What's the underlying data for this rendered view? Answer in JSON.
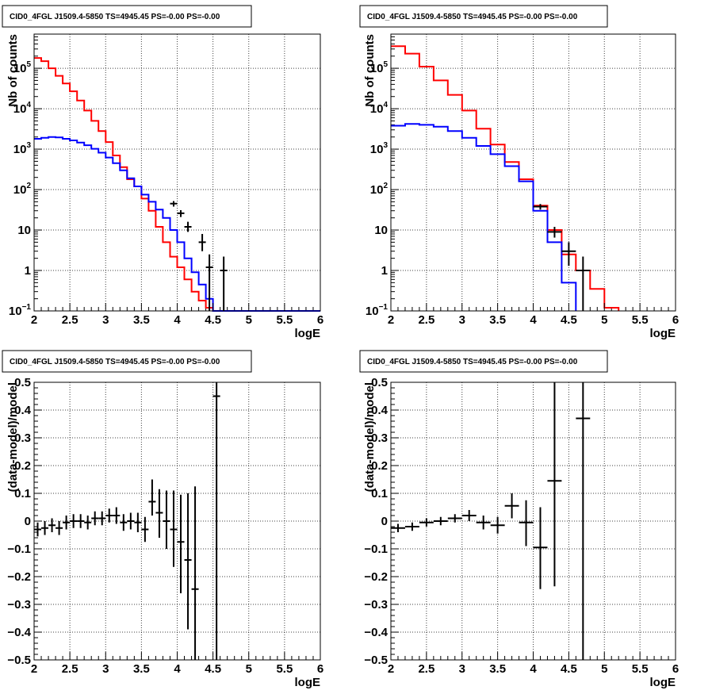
{
  "chart_data": [
    {
      "type": "line",
      "scale": "log",
      "title": "CID0_4FGL J1509.4-5850 TS=4945.45 PS=-0.00 PS=-0.00",
      "xlabel": "logE",
      "ylabel": "Nb of counts",
      "xlim": [
        2,
        6
      ],
      "ylim": [
        0.1,
        700000
      ],
      "x_ticks": [
        "2",
        "2.5",
        "3",
        "3.5",
        "4",
        "4.5",
        "5",
        "5.5",
        "6"
      ],
      "y_ticks": [
        {
          "value": 0.1,
          "label": "10",
          "sup": "−1"
        },
        {
          "value": 1,
          "label": "1",
          "sup": ""
        },
        {
          "value": 10,
          "label": "10",
          "sup": ""
        },
        {
          "value": 100,
          "label": "10",
          "sup": "2"
        },
        {
          "value": 1000,
          "label": "10",
          "sup": "3"
        },
        {
          "value": 10000,
          "label": "10",
          "sup": "4"
        },
        {
          "value": 100000,
          "label": "10",
          "sup": "5"
        }
      ],
      "grid": true,
      "series": [
        {
          "kind": "step",
          "color": "#ff0000",
          "edges": [
            2.0,
            2.1,
            2.2,
            2.3,
            2.4,
            2.5,
            2.6,
            2.7,
            2.8,
            2.9,
            3.0,
            3.1,
            3.2,
            3.3,
            3.4,
            3.5,
            3.6,
            3.7,
            3.8,
            3.9,
            4.0,
            4.1,
            4.2,
            4.3,
            4.4,
            4.5,
            4.6,
            4.7,
            4.8,
            4.9,
            5.0
          ],
          "values": [
            180000,
            150000,
            100000,
            65000,
            42000,
            27000,
            16000,
            9000,
            5000,
            2800,
            1500,
            700,
            360,
            180,
            120,
            60,
            30,
            12,
            5,
            2.2,
            1.2,
            0.6,
            0.3,
            0.18,
            0.12,
            0.1,
            0.1,
            0.1,
            0.1,
            0.1
          ]
        },
        {
          "kind": "step",
          "color": "#0000ff",
          "edges": [
            2.0,
            2.1,
            2.2,
            2.3,
            2.4,
            2.5,
            2.6,
            2.7,
            2.8,
            2.9,
            3.0,
            3.1,
            3.2,
            3.3,
            3.4,
            3.5,
            3.6,
            3.7,
            3.8,
            3.9,
            4.0,
            4.1,
            4.2,
            4.3,
            4.4,
            4.5,
            4.6
          ],
          "values": [
            1800,
            1900,
            2000,
            1950,
            1800,
            1650,
            1450,
            1250,
            1020,
            820,
            620,
            450,
            300,
            190,
            120,
            75,
            50,
            32,
            20,
            10,
            5,
            2,
            0.9,
            0.45,
            0.2,
            0.1
          ]
        },
        {
          "kind": "points",
          "color": "#000000",
          "points": [
            {
              "x": 3.95,
              "y": 45,
              "xerr": 0.05,
              "ylo": 38,
              "yhi": 52
            },
            {
              "x": 4.05,
              "y": 26,
              "xerr": 0.05,
              "ylo": 21,
              "yhi": 31
            },
            {
              "x": 4.15,
              "y": 12,
              "xerr": 0.05,
              "ylo": 9,
              "yhi": 16
            },
            {
              "x": 4.35,
              "y": 5,
              "xerr": 0.05,
              "ylo": 3,
              "yhi": 8
            },
            {
              "x": 4.45,
              "y": 1.2,
              "xerr": 0.05,
              "ylo": 0.1,
              "yhi": 2.5
            },
            {
              "x": 4.65,
              "y": 1.0,
              "xerr": 0.05,
              "ylo": 0.1,
              "yhi": 2.2
            }
          ]
        }
      ]
    },
    {
      "type": "line",
      "scale": "log",
      "title": "CID0_4FGL J1509.4-5850 TS=4945.45 PS=-0.00 PS=-0.00",
      "xlabel": "logE",
      "ylabel": "Nb of counts",
      "xlim": [
        2,
        6
      ],
      "ylim": [
        0.1,
        700000
      ],
      "x_ticks": [
        "2",
        "2.5",
        "3",
        "3.5",
        "4",
        "4.5",
        "5",
        "5.5",
        "6"
      ],
      "y_ticks": [
        {
          "value": 0.1,
          "label": "10",
          "sup": "−1"
        },
        {
          "value": 1,
          "label": "1",
          "sup": ""
        },
        {
          "value": 10,
          "label": "10",
          "sup": ""
        },
        {
          "value": 100,
          "label": "10",
          "sup": "2"
        },
        {
          "value": 1000,
          "label": "10",
          "sup": "3"
        },
        {
          "value": 10000,
          "label": "10",
          "sup": "4"
        },
        {
          "value": 100000,
          "label": "10",
          "sup": "5"
        }
      ],
      "grid": true,
      "series": [
        {
          "kind": "step",
          "color": "#ff0000",
          "edges": [
            2.0,
            2.2,
            2.4,
            2.6,
            2.8,
            3.0,
            3.2,
            3.4,
            3.6,
            3.8,
            4.0,
            4.2,
            4.4,
            4.6,
            4.8,
            5.0,
            5.2
          ],
          "values": [
            350000,
            230000,
            110000,
            50000,
            22000,
            9000,
            3200,
            1300,
            480,
            180,
            40,
            10,
            2.5,
            1.0,
            0.35,
            0.12
          ]
        },
        {
          "kind": "step",
          "color": "#0000ff",
          "edges": [
            2.0,
            2.2,
            2.4,
            2.6,
            2.8,
            3.0,
            3.2,
            3.4,
            3.6,
            3.8,
            4.0,
            4.2,
            4.4,
            4.6
          ],
          "values": [
            3800,
            4200,
            4000,
            3600,
            2800,
            1900,
            1200,
            750,
            380,
            160,
            30,
            5,
            0.5
          ]
        },
        {
          "kind": "points",
          "color": "#000000",
          "points": [
            {
              "x": 4.1,
              "y": 38,
              "xerr": 0.1,
              "ylo": 32,
              "yhi": 44
            },
            {
              "x": 4.3,
              "y": 9,
              "xerr": 0.1,
              "ylo": 6.5,
              "yhi": 12
            },
            {
              "x": 4.5,
              "y": 3,
              "xerr": 0.1,
              "ylo": 1.3,
              "yhi": 5
            },
            {
              "x": 4.7,
              "y": 1.0,
              "xerr": 0.1,
              "ylo": 0.1,
              "yhi": 2.2
            }
          ]
        }
      ]
    },
    {
      "type": "scatter",
      "scale": "linear",
      "title": "CID0_4FGL J1509.4-5850 TS=4945.45 PS=-0.00 PS=-0.00",
      "xlabel": "logE",
      "ylabel": "(data-model)/model",
      "xlim": [
        2,
        6
      ],
      "ylim": [
        -0.5,
        0.5
      ],
      "x_ticks": [
        "2",
        "2.5",
        "3",
        "3.5",
        "4",
        "4.5",
        "5",
        "5.5",
        "6"
      ],
      "y_ticks": [
        {
          "value": -0.5,
          "label": "−0.5"
        },
        {
          "value": -0.4,
          "label": "−0.4"
        },
        {
          "value": -0.3,
          "label": "−0.3"
        },
        {
          "value": -0.2,
          "label": "−0.2"
        },
        {
          "value": -0.1,
          "label": "−0.1"
        },
        {
          "value": 0,
          "label": "0"
        },
        {
          "value": 0.1,
          "label": "0.1"
        },
        {
          "value": 0.2,
          "label": "0.2"
        },
        {
          "value": 0.3,
          "label": "0.3"
        },
        {
          "value": 0.4,
          "label": "0.4"
        },
        {
          "value": 0.5,
          "label": "0.5"
        }
      ],
      "grid": true,
      "series": [
        {
          "kind": "points",
          "color": "#000000",
          "points": [
            {
              "x": 2.05,
              "y": -0.03,
              "xerr": 0.05,
              "ylo": -0.055,
              "yhi": -0.005
            },
            {
              "x": 2.15,
              "y": -0.025,
              "xerr": 0.05,
              "ylo": -0.05,
              "yhi": 0.0
            },
            {
              "x": 2.25,
              "y": -0.015,
              "xerr": 0.05,
              "ylo": -0.04,
              "yhi": 0.01
            },
            {
              "x": 2.35,
              "y": -0.025,
              "xerr": 0.05,
              "ylo": -0.05,
              "yhi": 0.0
            },
            {
              "x": 2.45,
              "y": -0.005,
              "xerr": 0.05,
              "ylo": -0.03,
              "yhi": 0.02
            },
            {
              "x": 2.55,
              "y": 0.0,
              "xerr": 0.05,
              "ylo": -0.025,
              "yhi": 0.025
            },
            {
              "x": 2.65,
              "y": 0.0,
              "xerr": 0.05,
              "ylo": -0.025,
              "yhi": 0.025
            },
            {
              "x": 2.75,
              "y": -0.005,
              "xerr": 0.05,
              "ylo": -0.03,
              "yhi": 0.02
            },
            {
              "x": 2.85,
              "y": 0.01,
              "xerr": 0.05,
              "ylo": -0.015,
              "yhi": 0.035
            },
            {
              "x": 2.95,
              "y": 0.01,
              "xerr": 0.05,
              "ylo": -0.015,
              "yhi": 0.035
            },
            {
              "x": 3.05,
              "y": 0.02,
              "xerr": 0.05,
              "ylo": -0.005,
              "yhi": 0.045
            },
            {
              "x": 3.15,
              "y": 0.02,
              "xerr": 0.05,
              "ylo": -0.01,
              "yhi": 0.05
            },
            {
              "x": 3.25,
              "y": -0.005,
              "xerr": 0.05,
              "ylo": -0.035,
              "yhi": 0.025
            },
            {
              "x": 3.35,
              "y": 0.0,
              "xerr": 0.05,
              "ylo": -0.03,
              "yhi": 0.03
            },
            {
              "x": 3.45,
              "y": -0.005,
              "xerr": 0.05,
              "ylo": -0.04,
              "yhi": 0.03
            },
            {
              "x": 3.55,
              "y": -0.03,
              "xerr": 0.05,
              "ylo": -0.075,
              "yhi": 0.015
            },
            {
              "x": 3.65,
              "y": 0.07,
              "xerr": 0.05,
              "ylo": 0.02,
              "yhi": 0.15
            },
            {
              "x": 3.75,
              "y": 0.03,
              "xerr": 0.05,
              "ylo": -0.06,
              "yhi": 0.115
            },
            {
              "x": 3.85,
              "y": 0.0,
              "xerr": 0.05,
              "ylo": -0.1,
              "yhi": 0.11
            },
            {
              "x": 3.95,
              "y": -0.03,
              "xerr": 0.05,
              "ylo": -0.165,
              "yhi": 0.11
            },
            {
              "x": 4.05,
              "y": -0.075,
              "xerr": 0.05,
              "ylo": -0.26,
              "yhi": 0.095
            },
            {
              "x": 4.15,
              "y": -0.14,
              "xerr": 0.05,
              "ylo": -0.39,
              "yhi": 0.1
            },
            {
              "x": 4.25,
              "y": -0.245,
              "xerr": 0.05,
              "ylo": -0.5,
              "yhi": 0.125
            },
            {
              "x": 4.55,
              "y": 0.45,
              "xerr": 0.05,
              "ylo": -0.5,
              "yhi": 0.5
            }
          ]
        }
      ]
    },
    {
      "type": "scatter",
      "scale": "linear",
      "title": "CID0_4FGL J1509.4-5850 TS=4945.45 PS=-0.00 PS=-0.00",
      "xlabel": "logE",
      "ylabel": "(data-model)/model",
      "xlim": [
        2,
        6
      ],
      "ylim": [
        -0.5,
        0.5
      ],
      "x_ticks": [
        "2",
        "2.5",
        "3",
        "3.5",
        "4",
        "4.5",
        "5",
        "5.5",
        "6"
      ],
      "y_ticks": [
        {
          "value": -0.5,
          "label": "−0.5"
        },
        {
          "value": -0.4,
          "label": "−0.4"
        },
        {
          "value": -0.3,
          "label": "−0.3"
        },
        {
          "value": -0.2,
          "label": "−0.2"
        },
        {
          "value": -0.1,
          "label": "−0.1"
        },
        {
          "value": 0,
          "label": "0"
        },
        {
          "value": 0.1,
          "label": "0.1"
        },
        {
          "value": 0.2,
          "label": "0.2"
        },
        {
          "value": 0.3,
          "label": "0.3"
        },
        {
          "value": 0.4,
          "label": "0.4"
        },
        {
          "value": 0.5,
          "label": "0.5"
        }
      ],
      "grid": true,
      "series": [
        {
          "kind": "points",
          "color": "#000000",
          "points": [
            {
              "x": 2.1,
              "y": -0.025,
              "xerr": 0.1,
              "ylo": -0.04,
              "yhi": -0.01
            },
            {
              "x": 2.3,
              "y": -0.02,
              "xerr": 0.1,
              "ylo": -0.035,
              "yhi": -0.005
            },
            {
              "x": 2.5,
              "y": -0.005,
              "xerr": 0.1,
              "ylo": -0.02,
              "yhi": 0.01
            },
            {
              "x": 2.7,
              "y": 0.0,
              "xerr": 0.1,
              "ylo": -0.015,
              "yhi": 0.015
            },
            {
              "x": 2.9,
              "y": 0.01,
              "xerr": 0.1,
              "ylo": -0.005,
              "yhi": 0.025
            },
            {
              "x": 3.1,
              "y": 0.02,
              "xerr": 0.1,
              "ylo": 0.0,
              "yhi": 0.04
            },
            {
              "x": 3.3,
              "y": -0.005,
              "xerr": 0.1,
              "ylo": -0.03,
              "yhi": 0.02
            },
            {
              "x": 3.5,
              "y": -0.015,
              "xerr": 0.1,
              "ylo": -0.045,
              "yhi": 0.015
            },
            {
              "x": 3.7,
              "y": 0.055,
              "xerr": 0.1,
              "ylo": 0.01,
              "yhi": 0.1
            },
            {
              "x": 3.9,
              "y": -0.005,
              "xerr": 0.1,
              "ylo": -0.09,
              "yhi": 0.075
            },
            {
              "x": 4.1,
              "y": -0.095,
              "xerr": 0.1,
              "ylo": -0.245,
              "yhi": 0.05
            },
            {
              "x": 4.3,
              "y": 0.145,
              "xerr": 0.1,
              "ylo": -0.235,
              "yhi": 0.5
            },
            {
              "x": 4.7,
              "y": 0.37,
              "xerr": 0.1,
              "ylo": -0.5,
              "yhi": 0.5
            }
          ]
        }
      ]
    }
  ]
}
